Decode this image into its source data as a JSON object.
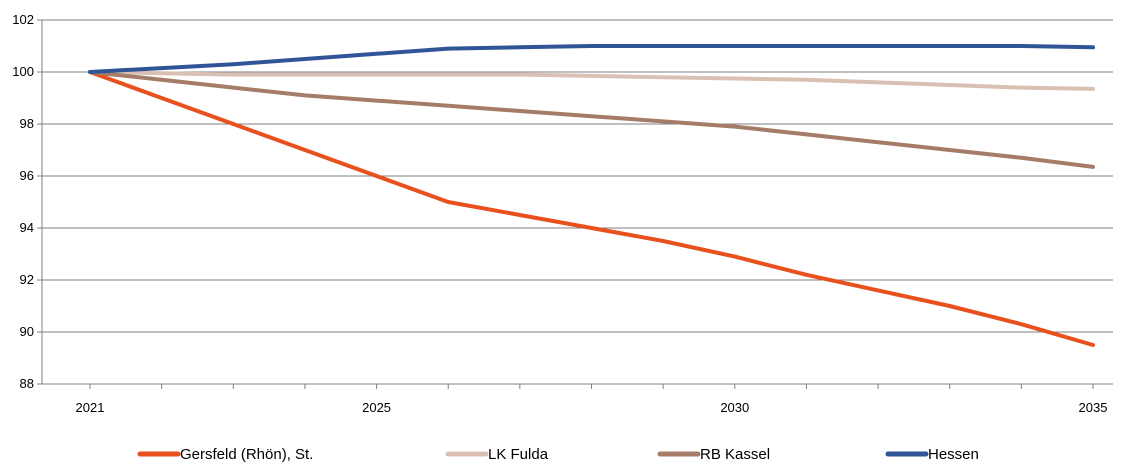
{
  "chart_data": {
    "type": "line",
    "title": "",
    "xlabel": "",
    "ylabel": "",
    "x": [
      2021,
      2022,
      2023,
      2024,
      2025,
      2026,
      2027,
      2028,
      2029,
      2030,
      2031,
      2032,
      2033,
      2034,
      2035
    ],
    "x_tick_labels": [
      "2021",
      "2025",
      "2030",
      "2035"
    ],
    "x_tick_values": [
      2021,
      2025,
      2030,
      2035
    ],
    "ylim": [
      88,
      102
    ],
    "y_ticks": [
      88,
      90,
      92,
      94,
      96,
      98,
      100,
      102
    ],
    "y_tick_labels": [
      "88",
      "90",
      "92",
      "94",
      "96",
      "98",
      "100",
      "102"
    ],
    "grid": "horizontal",
    "legend_position": "bottom",
    "series": [
      {
        "name": "Gersfeld (Rhön), St.",
        "color": "#e8501e",
        "values": [
          100,
          99.0,
          98.0,
          97.0,
          96.0,
          95.0,
          94.5,
          94.0,
          93.5,
          92.9,
          92.2,
          91.6,
          91.0,
          90.3,
          89.5
        ]
      },
      {
        "name": "LK Fulda",
        "color": "#d9c0b3",
        "values": [
          100,
          99.95,
          99.9,
          99.9,
          99.9,
          99.9,
          99.9,
          99.85,
          99.8,
          99.75,
          99.7,
          99.6,
          99.5,
          99.4,
          99.35
        ]
      },
      {
        "name": "RB Kassel",
        "color": "#a47c68",
        "values": [
          100,
          99.7,
          99.4,
          99.1,
          98.9,
          98.7,
          98.5,
          98.3,
          98.1,
          97.9,
          97.6,
          97.3,
          97.0,
          96.7,
          96.35
        ]
      },
      {
        "name": "Hessen",
        "color": "#2f5596",
        "values": [
          100,
          100.15,
          100.3,
          100.5,
          100.7,
          100.9,
          100.95,
          101.0,
          101.0,
          101.0,
          101.0,
          101.0,
          101.0,
          101.0,
          100.95
        ]
      }
    ]
  }
}
